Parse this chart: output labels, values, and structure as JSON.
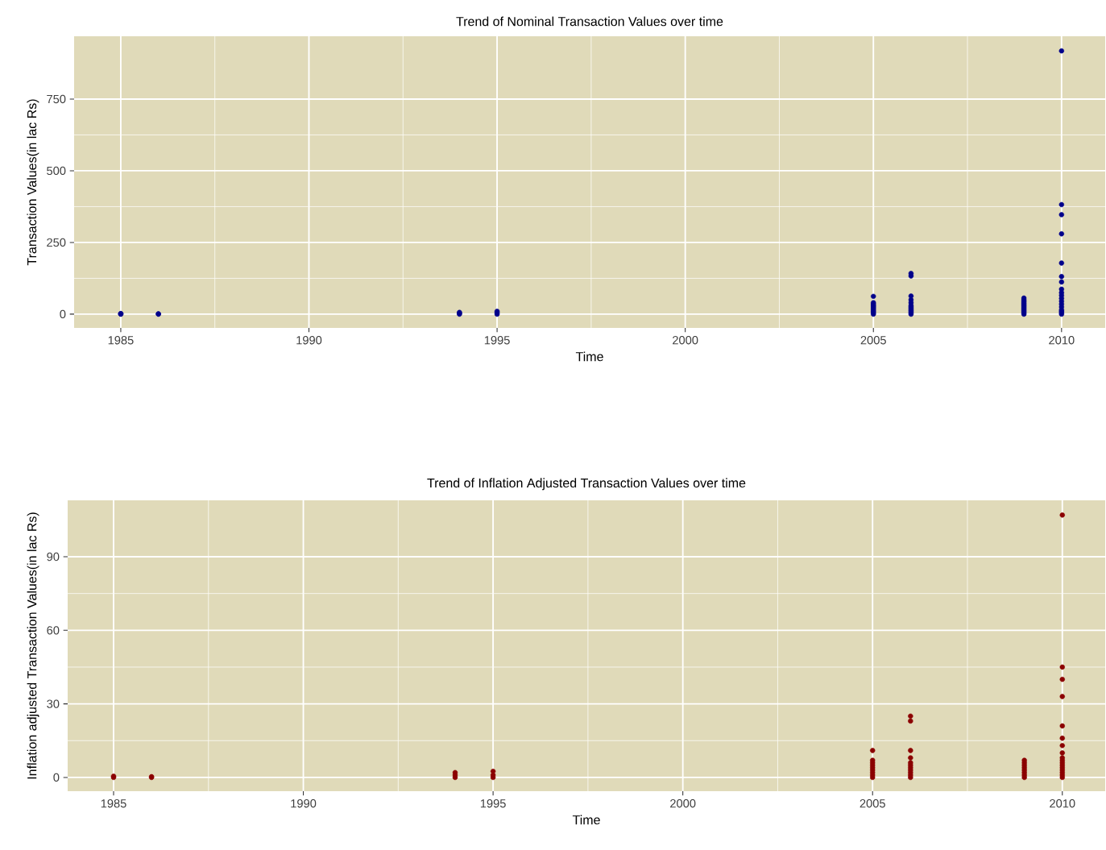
{
  "chart_data": [
    {
      "type": "scatter",
      "title": "Trend of Nominal Transaction Values over time",
      "xlabel": "Time",
      "ylabel": "Transaction Values(in lac Rs)",
      "xlim": [
        1983.76,
        2011.16
      ],
      "ylim": [
        -48,
        969
      ],
      "xticks": [
        1985,
        1990,
        1995,
        2000,
        2005,
        2010
      ],
      "yticks": [
        0,
        250,
        500,
        750
      ],
      "grid": true,
      "marker": "circle",
      "series": [
        {
          "color": "#00008b",
          "x": [
            1985,
            1985,
            1985,
            1986,
            1986,
            1994,
            1994,
            1994,
            1995,
            1995,
            1995,
            2005,
            2005,
            2005,
            2005,
            2005,
            2005,
            2005,
            2005,
            2005,
            2005,
            2006,
            2006,
            2006,
            2006,
            2006,
            2006,
            2006,
            2006,
            2006,
            2006,
            2006,
            2006,
            2009,
            2009,
            2009,
            2009,
            2009,
            2009,
            2009,
            2009,
            2009,
            2009,
            2009,
            2009,
            2010,
            2010,
            2010,
            2010,
            2010,
            2010,
            2010,
            2010,
            2010,
            2010,
            2010,
            2010,
            2010,
            2010,
            2010,
            2010,
            2010,
            2010
          ],
          "values": [
            0,
            1,
            2,
            0,
            1,
            0,
            3,
            6,
            0,
            5,
            10,
            0,
            5,
            10,
            15,
            20,
            25,
            30,
            35,
            40,
            62,
            0,
            5,
            10,
            15,
            20,
            25,
            30,
            40,
            50,
            63,
            133,
            142,
            0,
            5,
            10,
            15,
            20,
            25,
            30,
            35,
            40,
            45,
            50,
            56,
            0,
            5,
            10,
            15,
            25,
            35,
            45,
            55,
            65,
            75,
            87,
            112,
            131,
            178,
            280,
            347,
            382,
            918
          ]
        }
      ]
    },
    {
      "type": "scatter",
      "title": "Trend of Inflation Adjusted Transaction Values over time",
      "xlabel": "Time",
      "ylabel": "Inflation adjusted Transaction Values(in lac Rs)",
      "xlim": [
        1983.79,
        2011.13
      ],
      "ylim": [
        -5.6,
        113
      ],
      "xticks": [
        1985,
        1990,
        1995,
        2000,
        2005,
        2010
      ],
      "yticks": [
        0,
        30,
        60,
        90
      ],
      "grid": true,
      "marker": "circle",
      "series": [
        {
          "color": "#8b0000",
          "x": [
            1985,
            1985,
            1986,
            1986,
            1994,
            1994,
            1994,
            1995,
            1995,
            1995,
            2005,
            2005,
            2005,
            2005,
            2005,
            2005,
            2005,
            2005,
            2005,
            2006,
            2006,
            2006,
            2006,
            2006,
            2006,
            2006,
            2006,
            2006,
            2006,
            2006,
            2009,
            2009,
            2009,
            2009,
            2009,
            2009,
            2009,
            2009,
            2010,
            2010,
            2010,
            2010,
            2010,
            2010,
            2010,
            2010,
            2010,
            2010,
            2010,
            2010,
            2010,
            2010,
            2010,
            2010,
            2010
          ],
          "values": [
            0,
            0.5,
            0,
            0.3,
            0,
            1,
            2,
            0,
            1,
            2.5,
            0,
            1,
            2,
            3,
            4,
            5,
            6,
            7,
            11,
            0,
            1,
            2,
            3,
            4,
            5,
            6,
            8,
            11,
            23,
            25,
            0,
            1,
            2,
            3,
            4,
            5,
            6,
            7,
            0,
            1,
            2,
            3,
            4,
            5,
            6,
            7,
            8,
            10,
            13,
            16,
            21,
            33,
            40,
            45,
            107
          ]
        }
      ]
    }
  ]
}
